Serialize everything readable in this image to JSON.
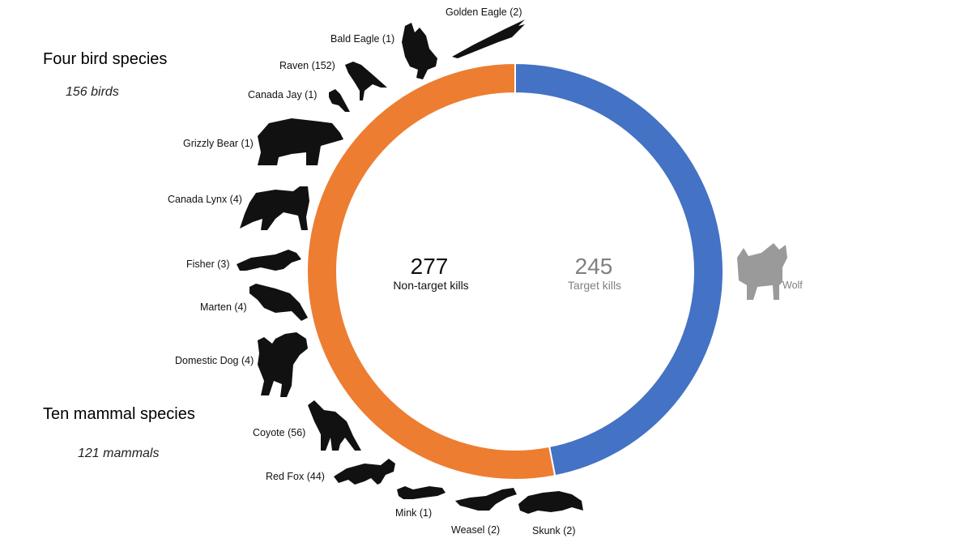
{
  "chart_data": {
    "type": "donut",
    "segments": [
      {
        "name": "Non-target kills",
        "value": 277,
        "color": "#ED7D31"
      },
      {
        "name": "Target kills",
        "value": 245,
        "color": "#4472C4"
      }
    ],
    "center": {
      "left_value": "277",
      "left_label": "Non-target kills",
      "right_value": "245",
      "right_label": "Target kills"
    },
    "target_species": {
      "label": "Wolf",
      "icon": "wolf-icon"
    },
    "groups": [
      {
        "title": "Four bird species",
        "subtitle": "156 birds"
      },
      {
        "title": "Ten mammal species",
        "subtitle": "121 mammals"
      }
    ],
    "species": [
      {
        "label": "Golden Eagle (2)",
        "icon": "golden-eagle-icon"
      },
      {
        "label": "Bald Eagle (1)",
        "icon": "bald-eagle-icon"
      },
      {
        "label": "Raven (152)",
        "icon": "raven-icon"
      },
      {
        "label": "Canada Jay (1)",
        "icon": "canada-jay-icon"
      },
      {
        "label": "Grizzly Bear (1)",
        "icon": "grizzly-bear-icon"
      },
      {
        "label": "Canada Lynx (4)",
        "icon": "lynx-icon"
      },
      {
        "label": "Fisher (3)",
        "icon": "fisher-icon"
      },
      {
        "label": "Marten (4)",
        "icon": "marten-icon"
      },
      {
        "label": "Domestic Dog (4)",
        "icon": "dog-icon"
      },
      {
        "label": "Coyote (56)",
        "icon": "coyote-icon"
      },
      {
        "label": "Red Fox (44)",
        "icon": "red-fox-icon"
      },
      {
        "label": "Mink (1)",
        "icon": "mink-icon"
      },
      {
        "label": "Weasel (2)",
        "icon": "weasel-icon"
      },
      {
        "label": "Skunk (2)",
        "icon": "skunk-icon"
      }
    ]
  }
}
